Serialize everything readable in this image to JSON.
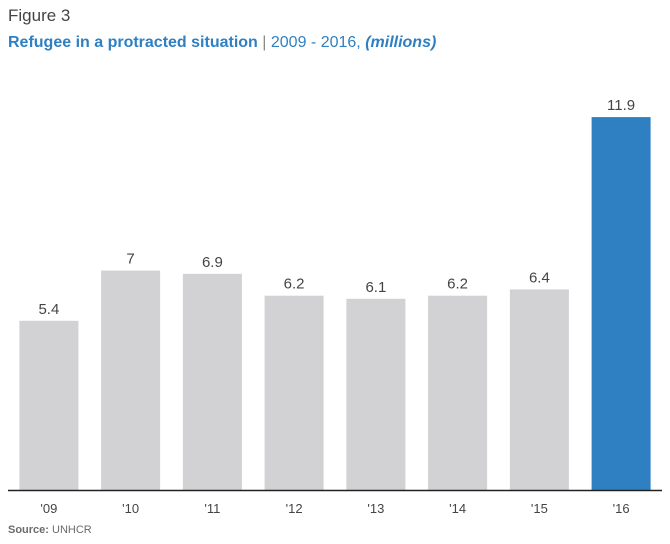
{
  "figure_label": "Figure 3",
  "title": {
    "main": "Refugee in a protracted situation",
    "separator": "|",
    "range": "2009 - 2016,",
    "unit": "(millions)"
  },
  "source": {
    "label": "Source:",
    "text": "UNHCR"
  },
  "colors": {
    "bar_default": "#d2d2d4",
    "bar_highlight": "#2f80c2",
    "axis": "#222222",
    "value_label": "#444444",
    "tick_label": "#444444",
    "title_blue": "#2f80c2"
  },
  "chart_data": {
    "type": "bar",
    "categories": [
      "'09",
      "'10",
      "'11",
      "'12",
      "'13",
      "'14",
      "'15",
      "'16"
    ],
    "values": [
      5.4,
      7,
      6.9,
      6.2,
      6.1,
      6.2,
      6.4,
      11.9
    ],
    "value_labels": [
      "5.4",
      "7",
      "6.9",
      "6.2",
      "6.1",
      "6.2",
      "6.4",
      "11.9"
    ],
    "highlight_index": 7,
    "ylim": [
      0,
      12.54
    ],
    "grid": false,
    "legend": "none",
    "xlabel": "",
    "ylabel": ""
  }
}
